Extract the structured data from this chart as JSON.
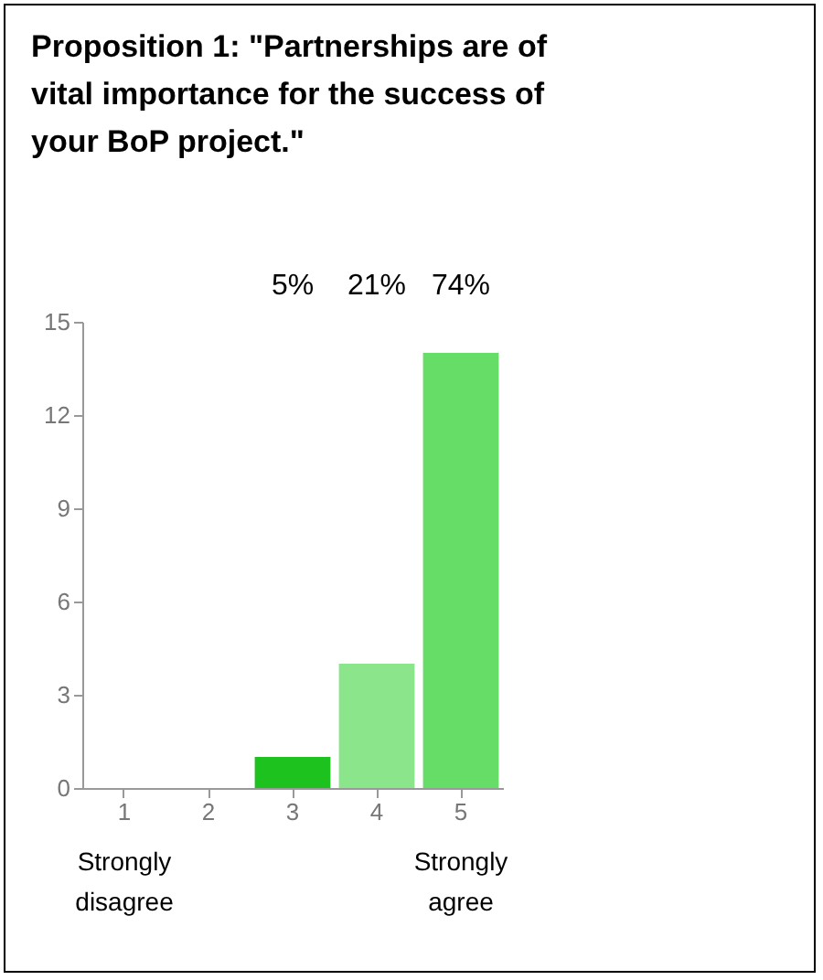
{
  "chart_data": {
    "type": "bar",
    "title": "Proposition 1: \"Partnerships are of vital importance for the success of your BoP project.\"",
    "categories": [
      "1",
      "2",
      "3",
      "4",
      "5"
    ],
    "values": [
      0,
      0,
      1,
      4,
      14
    ],
    "colors": [
      "#33cc33",
      "#33cc33",
      "#1ec21e",
      "#8be58b",
      "#66dd66"
    ],
    "ylim": [
      0,
      15
    ],
    "yticks": [
      0,
      3,
      6,
      9,
      12,
      15
    ],
    "grid": false,
    "annotations": [
      "5%",
      "21%",
      "74%",
      "Strongly disagree",
      "Strongly agree"
    ]
  }
}
